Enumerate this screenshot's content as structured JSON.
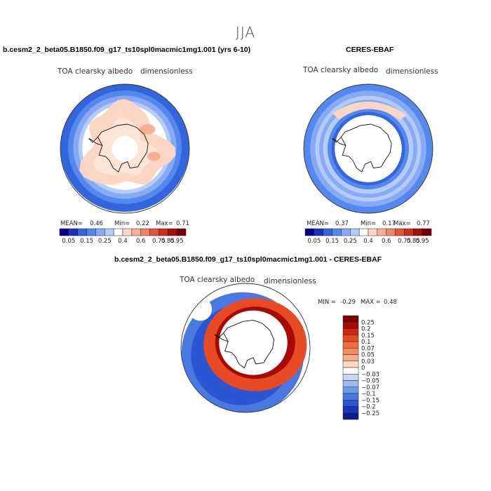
{
  "figure": {
    "season": "JJA"
  },
  "chart_data": [
    {
      "type": "heatmap",
      "projection": "south-polar-stereographic",
      "title": "b.cesm2_2_beta05.B1850.f09_g17_ts10spl0macmic1mg1.001 (yrs 6-10)",
      "variable": "TOA clearsky albedo",
      "units": "dimensionless",
      "mean_label": "MEAN=",
      "mean": "0.46",
      "min_label": "Min=",
      "min": "0.22",
      "max_label": "Max=",
      "max": "0.71",
      "legend": "horizontal-bottom",
      "colorbar": {
        "labels": [
          "0.05",
          "0.15",
          "0.25",
          "0.4",
          "0.6",
          "0.75",
          "0.85",
          "0.95"
        ],
        "colors": [
          "#00008b",
          "#1732b4",
          "#3366dd",
          "#5588ee",
          "#88aaf4",
          "#b4ccf8",
          "#ffffff",
          "#fcd6c4",
          "#f8b094",
          "#f08466",
          "#e0563a",
          "#c83018",
          "#a01004",
          "#7a0000"
        ]
      }
    },
    {
      "type": "heatmap",
      "projection": "south-polar-stereographic",
      "title": "CERES-EBAF",
      "variable": "TOA clearsky albedo",
      "units": "dimensionless",
      "mean_label": "MEAN=",
      "mean": "0.37",
      "min_label": "Min=",
      "min": "0.17",
      "max_label": "Max=",
      "max": "0.77",
      "legend": "horizontal-bottom",
      "colorbar": {
        "labels": [
          "0.05",
          "0.15",
          "0.25",
          "0.4",
          "0.6",
          "0.75",
          "0.85",
          "0.95"
        ],
        "colors": [
          "#00008b",
          "#1732b4",
          "#3366dd",
          "#5588ee",
          "#88aaf4",
          "#b4ccf8",
          "#ffffff",
          "#fcd6c4",
          "#f8b094",
          "#f08466",
          "#e0563a",
          "#c83018",
          "#a01004",
          "#7a0000"
        ]
      }
    },
    {
      "type": "heatmap",
      "projection": "south-polar-stereographic",
      "title": "b.cesm2_2_beta05.B1850.f09_g17_ts10spl0macmic1mg1.001 - CERES-EBAF",
      "variable": "TOA clearsky albedo",
      "units": "dimensionless",
      "min_label": "MIN =",
      "min": "-0.29",
      "max_label": "MAX =",
      "max": "0.48",
      "legend": "vertical-right",
      "colorbar": {
        "labels": [
          "0.25",
          "0.2",
          "0.15",
          "0.1",
          "0.07",
          "0.05",
          "0.03",
          "0",
          "−0.03",
          "−0.05",
          "−0.07",
          "−0.1",
          "−0.15",
          "−0.2",
          "−0.25"
        ],
        "colors": [
          "#7a0000",
          "#a80a00",
          "#d02810",
          "#e84a24",
          "#f26a3e",
          "#f68a60",
          "#f9ae8c",
          "#fcd8c4",
          "#ffffff",
          "#c8d8f4",
          "#9cbcee",
          "#6e9ae6",
          "#4878e0",
          "#2a56d4",
          "#1838b4",
          "#0a1e8c"
        ]
      }
    }
  ]
}
